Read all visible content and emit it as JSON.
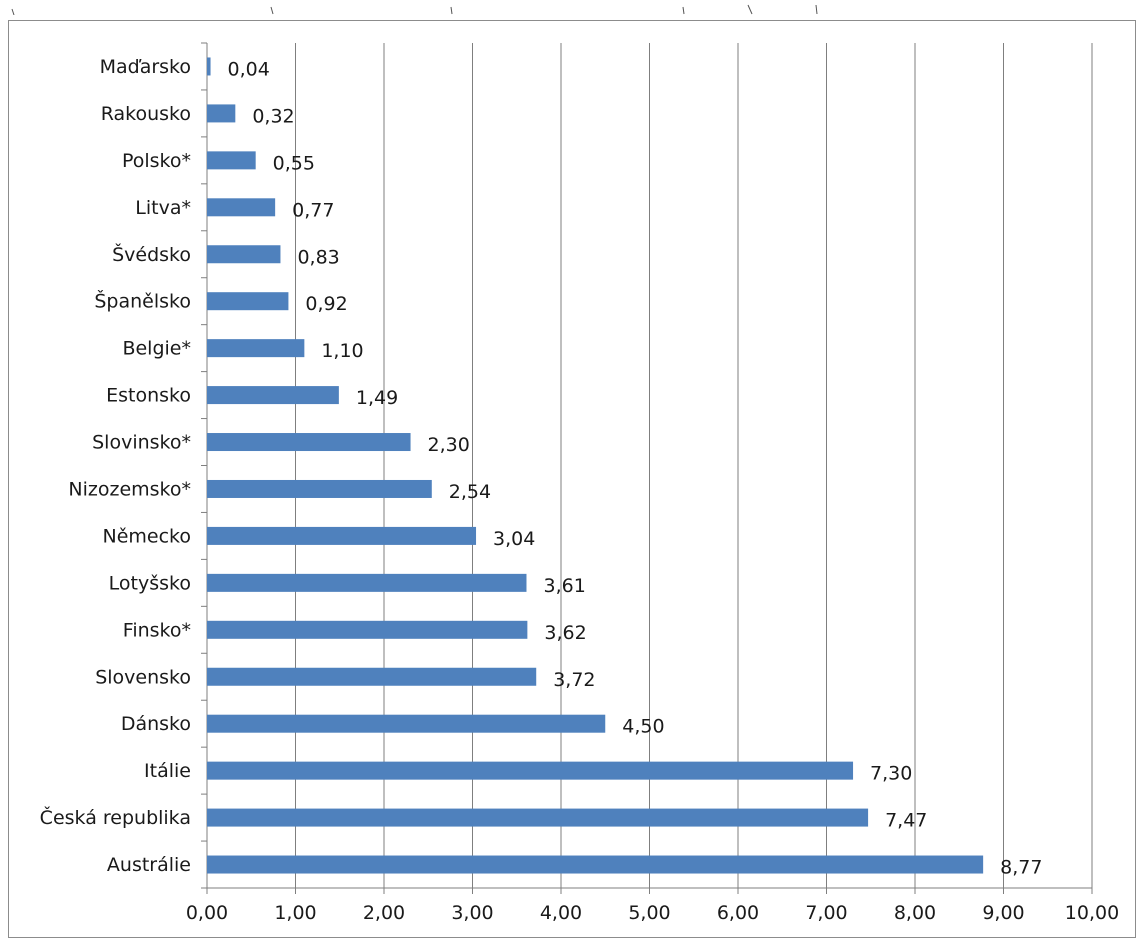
{
  "chart_data": {
    "type": "bar",
    "orientation": "horizontal",
    "categories": [
      "Maďarsko",
      "Rakousko",
      "Polsko*",
      "Litva*",
      "Švédsko",
      "Španělsko",
      "Belgie*",
      "Estonsko",
      "Slovinsko*",
      "Nizozemsko*",
      "Německo",
      "Lotyšsko",
      "Finsko*",
      "Slovensko",
      "Dánsko",
      "Itálie",
      "Česká republika",
      "Austrálie"
    ],
    "values": [
      0.04,
      0.32,
      0.55,
      0.77,
      0.83,
      0.92,
      1.1,
      1.49,
      2.3,
      2.54,
      3.04,
      3.61,
      3.62,
      3.72,
      4.5,
      7.3,
      7.47,
      8.77
    ],
    "value_labels": [
      "0,04",
      "0,32",
      "0,55",
      "0,77",
      "0,83",
      "0,92",
      "1,10",
      "1,49",
      "2,30",
      "2,54",
      "3,04",
      "3,61",
      "3,62",
      "3,72",
      "4,50",
      "7,30",
      "7,47",
      "8,77"
    ],
    "x_ticks": [
      "0,00",
      "1,00",
      "2,00",
      "3,00",
      "4,00",
      "5,00",
      "6,00",
      "7,00",
      "8,00",
      "9,00",
      "10,00"
    ],
    "xlim": [
      0,
      10
    ],
    "grid": "vertical",
    "legend": "none",
    "title": "",
    "xlabel": "",
    "ylabel": "",
    "bar_color": "#4f81bd",
    "grid_color": "#7f7f7f"
  }
}
